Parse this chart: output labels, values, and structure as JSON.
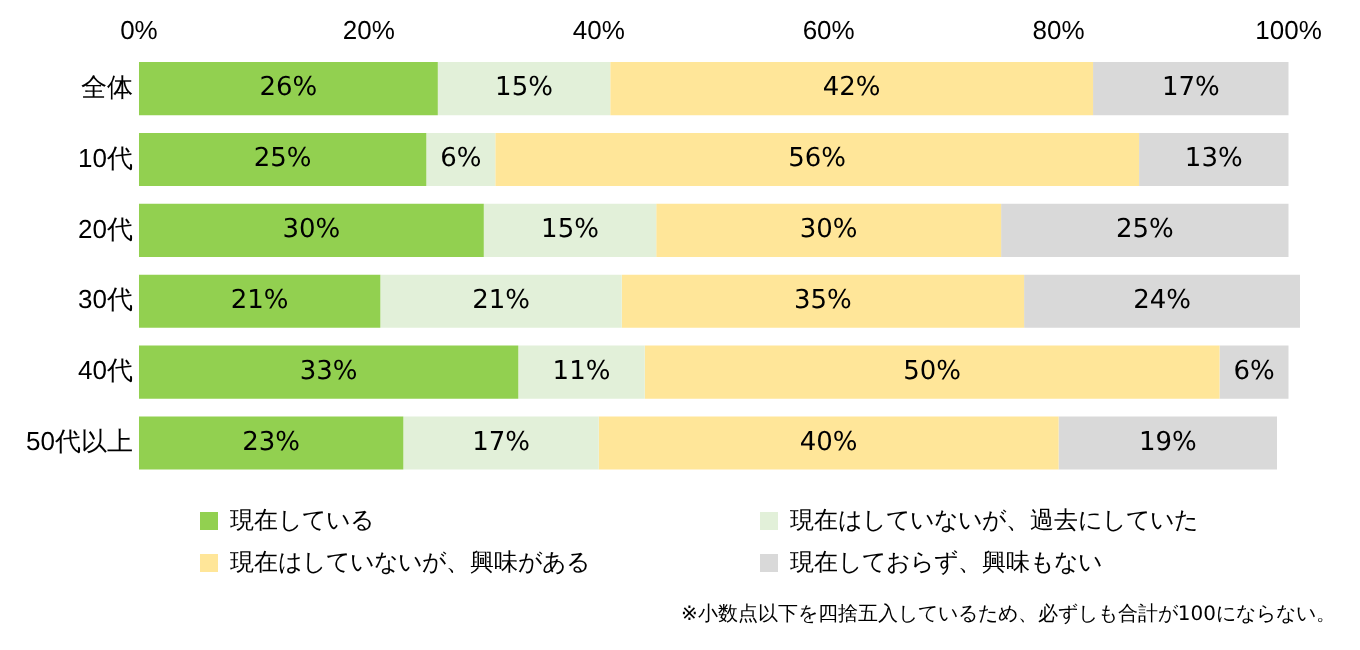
{
  "chart_data": {
    "type": "bar",
    "orientation": "horizontal",
    "stacked": true,
    "categories": [
      "全体",
      "10代",
      "20代",
      "30代",
      "40代",
      "50代以上"
    ],
    "series": [
      {
        "name": "現在している",
        "color": "#92d050",
        "values": [
          26,
          25,
          30,
          21,
          33,
          23
        ]
      },
      {
        "name": "現在はしていないが、過去にしていた",
        "color": "#e2f0d9",
        "values": [
          15,
          6,
          15,
          21,
          11,
          17
        ]
      },
      {
        "name": "現在はしていないが、興味がある",
        "color": "#ffe699",
        "values": [
          42,
          56,
          30,
          35,
          50,
          40
        ]
      },
      {
        "name": "現在しておらず、興味もない",
        "color": "#d9d9d9",
        "values": [
          17,
          13,
          25,
          24,
          6,
          19
        ]
      }
    ],
    "xlim": [
      0,
      101
    ],
    "xticks": [
      {
        "value": 0,
        "label": "0%"
      },
      {
        "value": 20,
        "label": "20%"
      },
      {
        "value": 40,
        "label": "40%"
      },
      {
        "value": 60,
        "label": "60%"
      },
      {
        "value": 80,
        "label": "80%"
      },
      {
        "value": 100,
        "label": "100%"
      }
    ],
    "value_labels": [
      [
        "26%",
        "25%",
        "30%",
        "21%",
        "33%",
        "23%"
      ],
      [
        "15%",
        "6%",
        "15%",
        "21%",
        "11%",
        "17%"
      ],
      [
        "42%",
        "56%",
        "30%",
        "35%",
        "50%",
        "40%"
      ],
      [
        "17%",
        "13%",
        "25%",
        "24%",
        "6%",
        "19%"
      ]
    ],
    "legend": "bottom",
    "grid": false,
    "annotations": [
      "※小数点以下を四捨五入しているため、必ずしも合計が100にならない。"
    ]
  }
}
